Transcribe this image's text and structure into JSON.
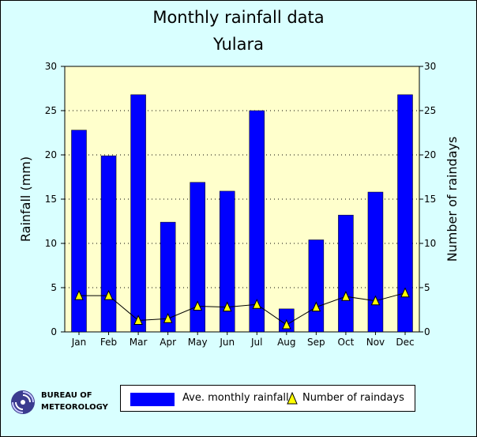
{
  "header": {
    "title": "Monthly rainfall data",
    "subtitle": "Yulara"
  },
  "logo": {
    "line1": "Bureau of",
    "line2": "Meteorology",
    "icon": "bom-swirl-icon"
  },
  "legend": {
    "rainfall_label": "Ave. monthly rainfall",
    "raindays_label": "Number of raindays"
  },
  "colors": {
    "bar": "#0000ff",
    "plot_bg": "#ffffcc",
    "page_bg": "#d9ffff",
    "marker": "#ffff00"
  },
  "chart_data": {
    "type": "bar",
    "title": "Monthly rainfall data",
    "subtitle": "Yulara",
    "categories": [
      "Jan",
      "Feb",
      "Mar",
      "Apr",
      "May",
      "Jun",
      "Jul",
      "Aug",
      "Sep",
      "Oct",
      "Nov",
      "Dec"
    ],
    "ylabel": "Rainfall (mm)",
    "y2label": "Number of raindays",
    "ylim": [
      0,
      30
    ],
    "y2lim": [
      0,
      30
    ],
    "yticks": [
      "0",
      "5",
      "10",
      "15",
      "20",
      "25",
      "30"
    ],
    "y2ticks": [
      "0",
      "5",
      "10",
      "15",
      "20",
      "25",
      "30"
    ],
    "grid": "horizontal dotted",
    "legend_position": "bottom",
    "series": [
      {
        "name": "Ave. monthly rainfall",
        "type": "bar",
        "values": [
          22.8,
          19.9,
          26.8,
          12.4,
          16.9,
          15.9,
          25.0,
          2.6,
          10.4,
          13.2,
          15.8,
          26.8
        ]
      },
      {
        "name": "Number of raindays",
        "type": "line",
        "axis": "right",
        "values": [
          4.1,
          4.1,
          1.3,
          1.5,
          2.9,
          2.8,
          3.1,
          0.8,
          2.8,
          4.0,
          3.5,
          4.4
        ]
      }
    ]
  }
}
